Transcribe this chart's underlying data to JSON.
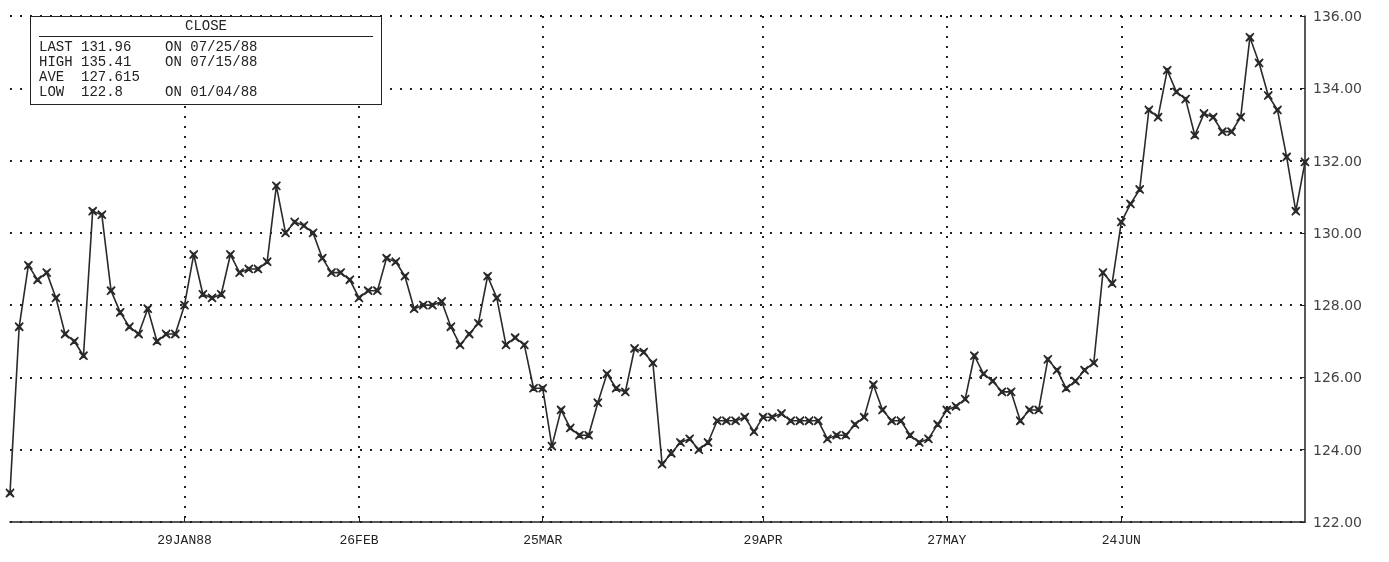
{
  "chart_data": {
    "type": "line",
    "categories": [
      null,
      null,
      null,
      null,
      null,
      null,
      null,
      null,
      null,
      null,
      null,
      null,
      null,
      null,
      null,
      null,
      null,
      null,
      null,
      "29JAN88",
      null,
      null,
      null,
      null,
      null,
      null,
      null,
      null,
      null,
      null,
      null,
      null,
      null,
      null,
      null,
      null,
      null,
      null,
      "26FEB",
      null,
      null,
      null,
      null,
      null,
      null,
      null,
      null,
      null,
      null,
      null,
      null,
      null,
      null,
      null,
      null,
      null,
      null,
      null,
      "25MAR",
      null,
      null,
      null,
      null,
      null,
      null,
      null,
      null,
      null,
      null,
      null,
      null,
      null,
      null,
      null,
      null,
      null,
      null,
      null,
      null,
      null,
      null,
      null,
      "29APR",
      null,
      null,
      null,
      null,
      null,
      null,
      null,
      null,
      null,
      null,
      null,
      null,
      null,
      null,
      null,
      null,
      null,
      null,
      null,
      "27MAY",
      null,
      null,
      null,
      null,
      null,
      null,
      null,
      null,
      null,
      null,
      null,
      null,
      null,
      null,
      null,
      null,
      null,
      null,
      "24JUN",
      null,
      null,
      null,
      null,
      null,
      null,
      null,
      null,
      null,
      null,
      null,
      null,
      null,
      null,
      null,
      null,
      null,
      null,
      null,
      null
    ],
    "series": [
      {
        "color": "#2a2a2a",
        "values": [
          122.8,
          127.4,
          129.1,
          128.7,
          128.9,
          128.2,
          127.2,
          127.0,
          126.6,
          130.6,
          130.5,
          128.4,
          127.8,
          127.4,
          127.2,
          127.9,
          127.0,
          127.2,
          127.2,
          128.0,
          129.4,
          128.3,
          128.2,
          128.3,
          129.4,
          128.9,
          129.0,
          129.0,
          129.2,
          131.3,
          130.0,
          130.3,
          130.2,
          130.0,
          129.3,
          128.9,
          128.9,
          128.7,
          128.2,
          128.4,
          128.4,
          129.3,
          129.2,
          128.8,
          127.9,
          128.0,
          128.0,
          128.1,
          127.4,
          126.9,
          127.2,
          127.5,
          128.8,
          128.2,
          126.9,
          127.1,
          126.9,
          125.7,
          125.7,
          124.1,
          125.1,
          124.6,
          124.4,
          124.4,
          125.3,
          126.1,
          125.7,
          125.6,
          126.8,
          126.7,
          126.4,
          123.6,
          123.9,
          124.2,
          124.3,
          124.0,
          124.2,
          124.8,
          124.8,
          124.8,
          124.9,
          124.5,
          124.9,
          124.9,
          125.0,
          124.8,
          124.8,
          124.8,
          124.8,
          124.3,
          124.4,
          124.4,
          124.7,
          124.9,
          125.8,
          125.1,
          124.8,
          124.8,
          124.4,
          124.2,
          124.3,
          124.7,
          125.1,
          125.2,
          125.4,
          126.6,
          126.1,
          125.9,
          125.6,
          125.6,
          124.8,
          125.1,
          125.1,
          126.5,
          126.2,
          125.7,
          125.9,
          126.2,
          126.4,
          128.9,
          128.6,
          130.3,
          130.8,
          131.2,
          133.4,
          133.2,
          134.5,
          133.9,
          133.7,
          132.7,
          133.3,
          133.2,
          132.8,
          132.8,
          133.2,
          135.41,
          134.7,
          133.8,
          133.4,
          132.1,
          130.6,
          131.96
        ]
      }
    ],
    "ylim": [
      122,
      136
    ],
    "yticks": [
      {
        "value": 122,
        "label": "122.00"
      },
      {
        "value": 124,
        "label": "124.00"
      },
      {
        "value": 126,
        "label": "126.00"
      },
      {
        "value": 128,
        "label": "128.00"
      },
      {
        "value": 130,
        "label": "130.00"
      },
      {
        "value": 132,
        "label": "132.00"
      },
      {
        "value": 134,
        "label": "134.00"
      },
      {
        "value": 136,
        "label": "136.00"
      }
    ],
    "grid": true,
    "marker": "cross",
    "line_style": "solid",
    "annotations": [
      "CLOSE",
      "LAST 131.96    ON 07/25/88",
      "HIGH 135.41    ON 07/15/88",
      "AVE  127.615",
      "LOW  122.8     ON 01/04/88"
    ]
  }
}
